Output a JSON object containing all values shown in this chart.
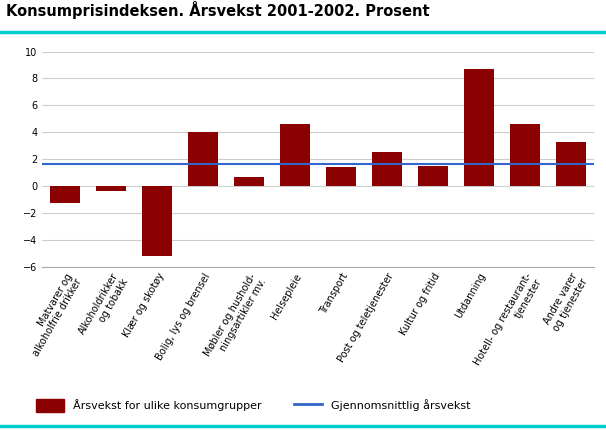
{
  "title": "Konsumprisindeksen. Årsvekst 2001-2002. Prosent",
  "categories": [
    "Matvarer og\nalkoholfrie drikker",
    "Alkoholdrikker\nog tobakk",
    "Klær og skotøy",
    "Bolig, lys og brensel",
    "Møbler og hushold-\nningsartikler mv.",
    "Helsepleie",
    "Transport",
    "Post og teletjenester",
    "Kultur og fritid",
    "Utdanning",
    "Hotell- og restaurant-\ntjenester",
    "Andre varer\nog tjenester"
  ],
  "values": [
    -1.3,
    -0.4,
    -5.2,
    4.0,
    0.7,
    4.6,
    1.4,
    2.5,
    1.5,
    8.7,
    4.6,
    3.3
  ],
  "bar_color": "#8B0000",
  "avg_line_value": 1.6,
  "avg_line_color": "#3366CC",
  "ylim": [
    -6,
    10
  ],
  "yticks": [
    -6,
    -4,
    -2,
    0,
    2,
    4,
    6,
    8,
    10
  ],
  "legend_bar_label": "Årsvekst for ulike konsumgrupper",
  "legend_line_label": "Gjennomsnittlig årsvekst",
  "background_color": "#ffffff",
  "grid_color": "#cccccc",
  "title_fontsize": 10.5,
  "tick_fontsize": 7.0,
  "legend_fontsize": 8.0,
  "cyan_line_color": "#00CCCC"
}
